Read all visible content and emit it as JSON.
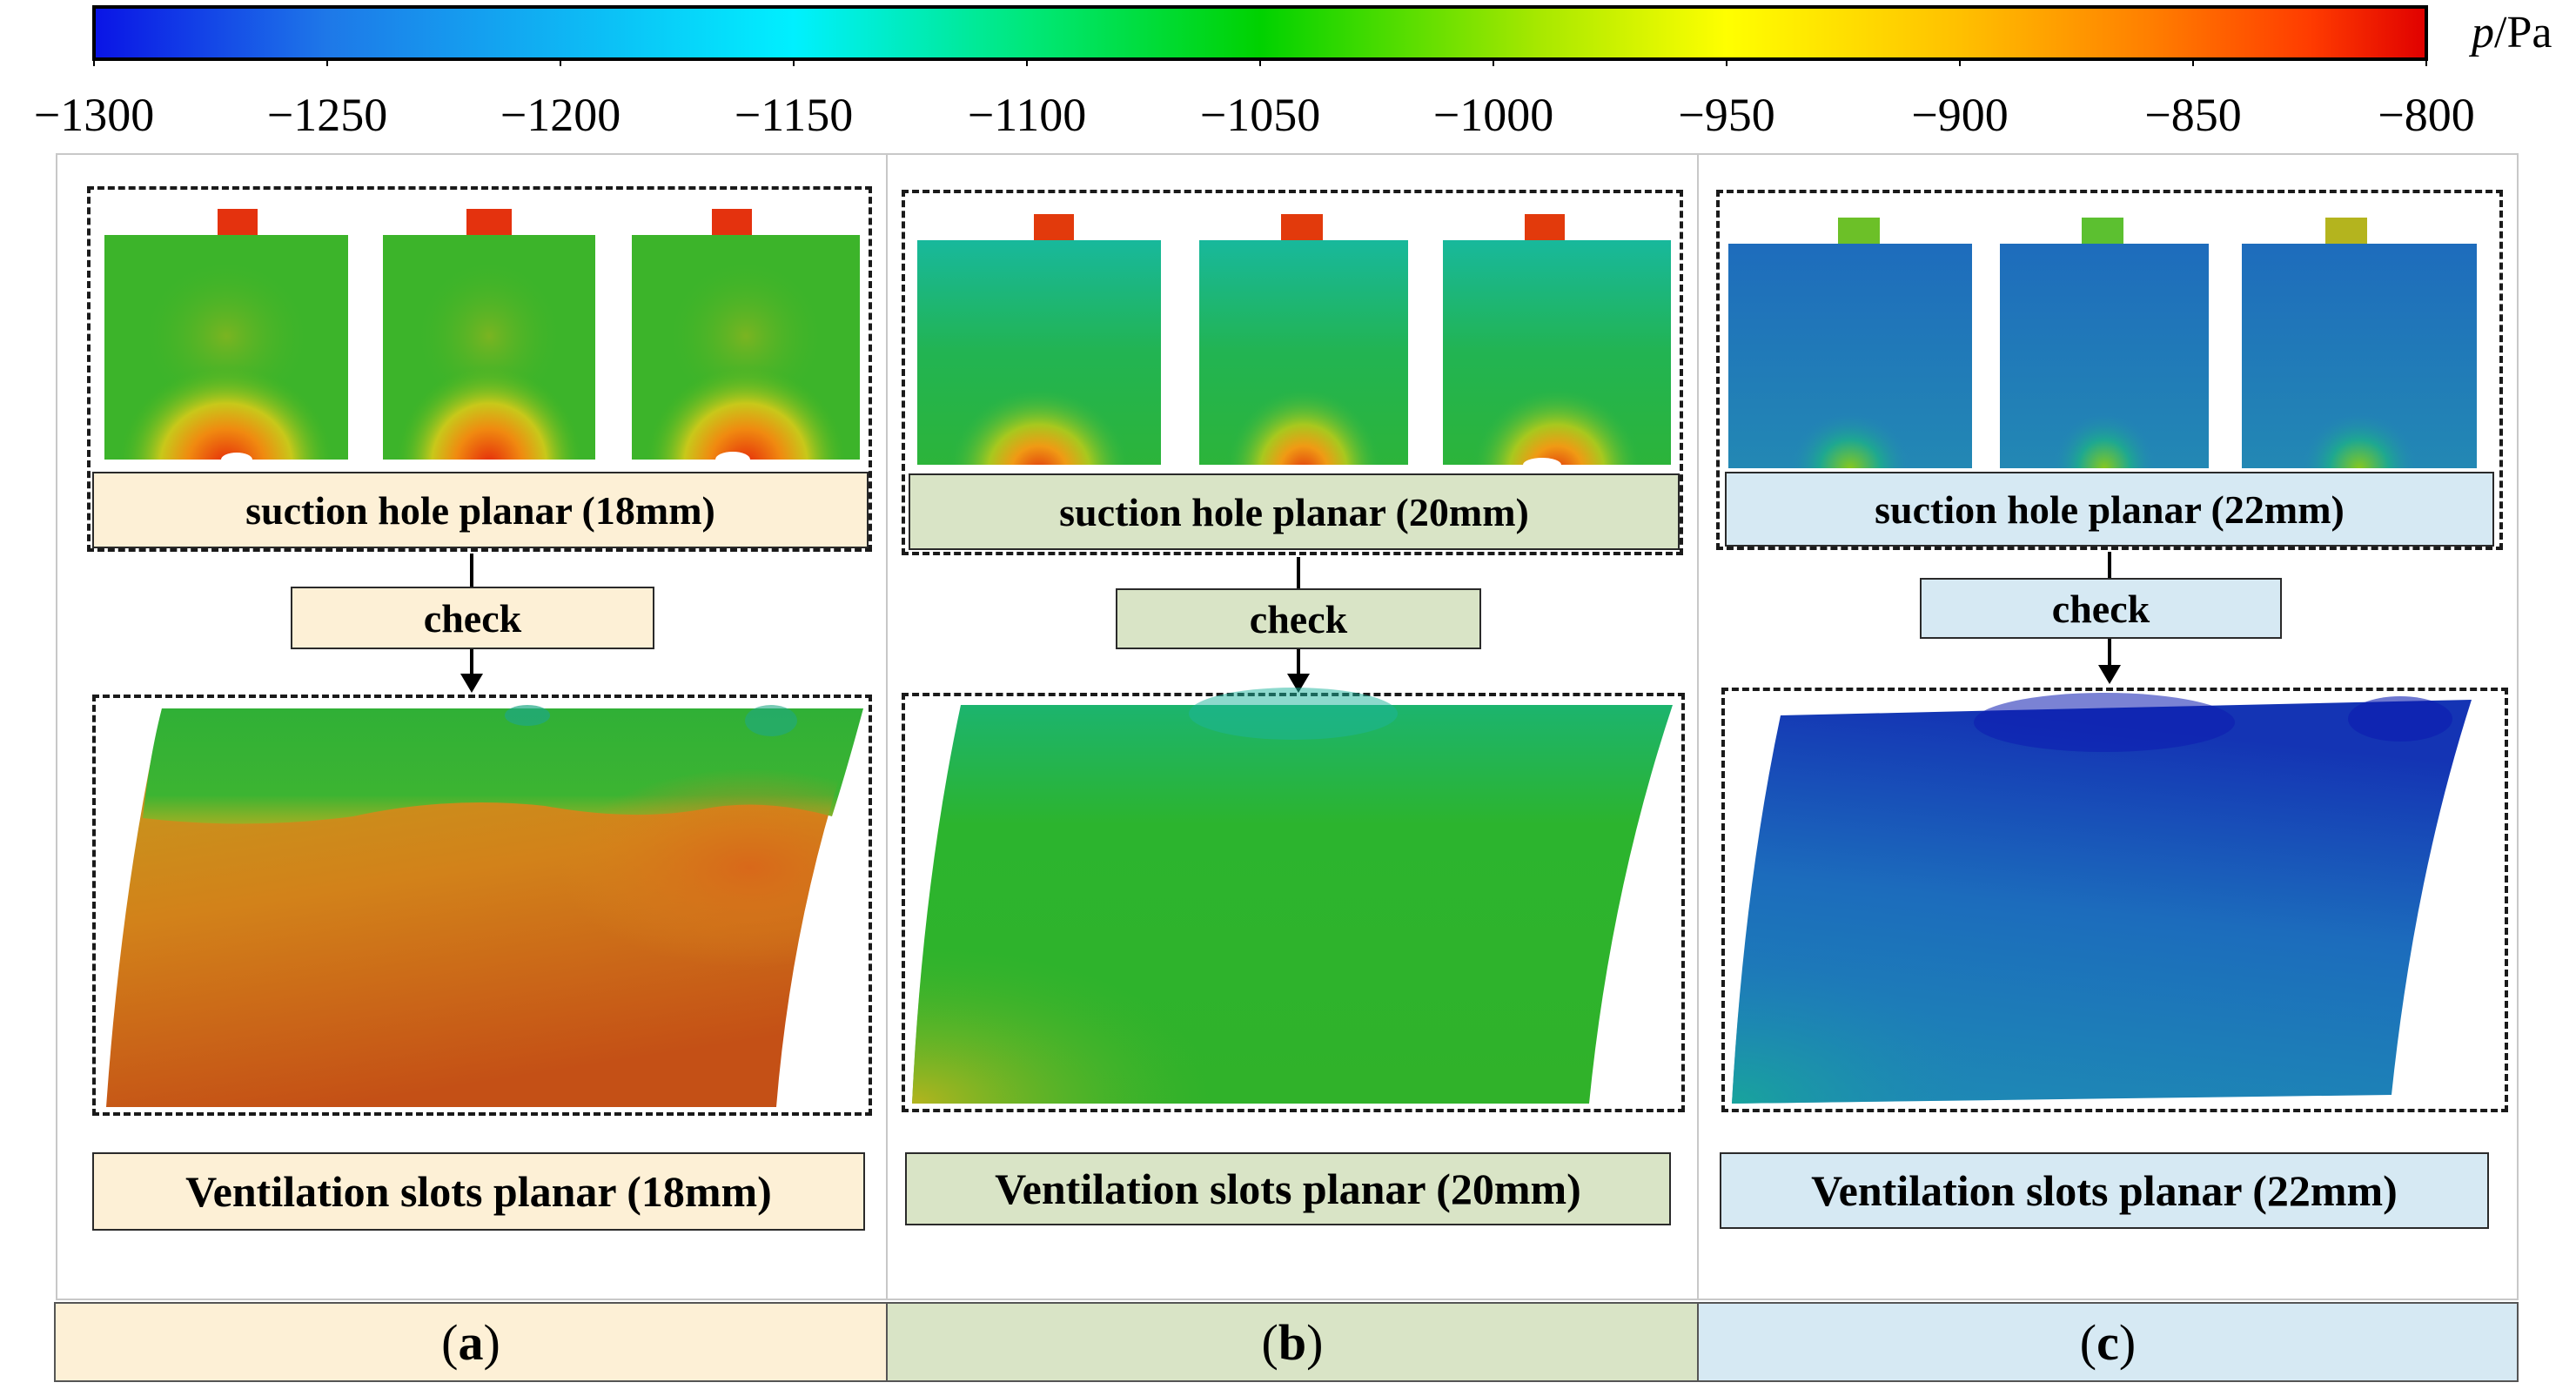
{
  "colorbar": {
    "unit_var": "p",
    "unit_rest": "/Pa",
    "min": -1300,
    "max": -800,
    "tick_values": [
      -1300,
      -1250,
      -1200,
      -1150,
      -1100,
      -1050,
      -1000,
      -950,
      -900,
      -850,
      -800
    ],
    "tick_labels": [
      "−1300",
      "−1250",
      "−1200",
      "−1150",
      "−1100",
      "−1050",
      "−1000",
      "−950",
      "−900",
      "−850",
      "−800"
    ],
    "colors": [
      "#0a14e6",
      "#1e78e8",
      "#00f0ff",
      "#00e87a",
      "#00d200",
      "#a8e800",
      "#ffff00",
      "#ffc000",
      "#ff8000",
      "#ff3c00",
      "#e00000"
    ]
  },
  "check_label": "check",
  "panels": [
    {
      "id": "a",
      "hole_label": "suction hole planar (18mm)",
      "slot_label": "Ventilation slots planar (18mm)",
      "caption_open": "(",
      "caption_letter": "a",
      "caption_close": ")",
      "bg_color": "#fdf0d6"
    },
    {
      "id": "b",
      "hole_label": "suction hole planar (20mm)",
      "slot_label": "Ventilation slots planar (20mm)",
      "caption_open": "(",
      "caption_letter": "b",
      "caption_close": ")",
      "bg_color": "#d9e4c6"
    },
    {
      "id": "c",
      "hole_label": "suction hole planar (22mm)",
      "slot_label": "Ventilation slots planar (22mm)",
      "caption_open": "(",
      "caption_letter": "c",
      "caption_close": ")",
      "bg_color": "#d6e9f3"
    }
  ]
}
